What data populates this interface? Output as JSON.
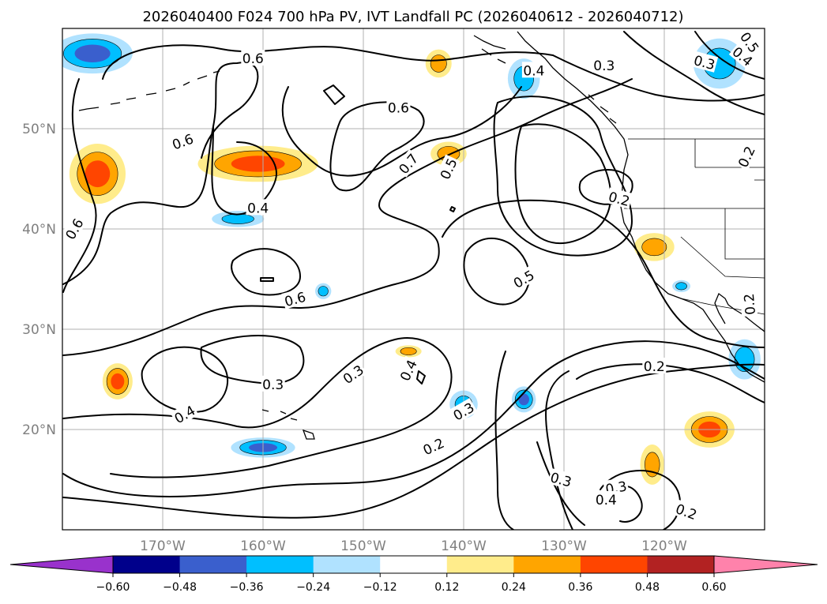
{
  "chart_data": {
    "type": "contour_map",
    "title": "2026040400 F024 700 hPa PV, IVT Landfall PC (2026040612 - 2026040712)",
    "projection": "PlateCarree",
    "xlim": [
      -180,
      -110
    ],
    "ylim": [
      10,
      60
    ],
    "lon_ticks": [
      -170,
      -160,
      -150,
      -140,
      -130,
      -120
    ],
    "lon_tick_labels": [
      "170°W",
      "160°W",
      "150°W",
      "140°W",
      "130°W",
      "120°W"
    ],
    "lat_ticks": [
      20,
      30,
      40,
      50
    ],
    "lat_tick_labels": [
      "20°N",
      "30°N",
      "40°N",
      "50°N"
    ],
    "grid": true,
    "colorbar": {
      "orientation": "horizontal",
      "extend": "both",
      "levels": [
        -0.6,
        -0.48,
        -0.36,
        -0.24,
        -0.12,
        0.12,
        0.24,
        0.36,
        0.48,
        0.6
      ],
      "tick_labels": [
        "−0.60",
        "−0.48",
        "−0.36",
        "−0.24",
        "−0.12",
        "0.12",
        "0.24",
        "0.36",
        "0.48",
        "0.60"
      ],
      "colors": [
        "#9932cc",
        "#00008b",
        "#3a5fcd",
        "#00bfff",
        "#b0e2ff",
        "#ffffff",
        "#ffec8b",
        "#ffa500",
        "#ff4500",
        "#b22222",
        "#ff82ab"
      ]
    },
    "contour_levels": [
      0.2,
      0.3,
      0.4,
      0.5,
      0.6,
      0.7
    ],
    "contour_labels": [
      {
        "text": "0.6",
        "lon": -161.0,
        "lat": 57.0,
        "rot": 0
      },
      {
        "text": "0.4",
        "lon": -133.0,
        "lat": 55.8,
        "rot": 0
      },
      {
        "text": "0.3",
        "lon": -126.0,
        "lat": 56.3,
        "rot": 0
      },
      {
        "text": "0.3",
        "lon": -116.0,
        "lat": 56.6,
        "rot": 15
      },
      {
        "text": "0.4",
        "lon": -112.2,
        "lat": 57.2,
        "rot": 40
      },
      {
        "text": "0.5",
        "lon": -111.5,
        "lat": 58.6,
        "rot": 55
      },
      {
        "text": "0.6",
        "lon": -146.5,
        "lat": 52.1,
        "rot": 0
      },
      {
        "text": "0.6",
        "lon": -168.0,
        "lat": 48.7,
        "rot": -20
      },
      {
        "text": "0.2",
        "lon": -111.8,
        "lat": 47.2,
        "rot": -65
      },
      {
        "text": "0.7",
        "lon": -145.5,
        "lat": 46.5,
        "rot": -50
      },
      {
        "text": "0.5",
        "lon": -141.5,
        "lat": 46.0,
        "rot": -65
      },
      {
        "text": "0.2",
        "lon": -124.5,
        "lat": 43.0,
        "rot": 15
      },
      {
        "text": "0.4",
        "lon": -160.5,
        "lat": 42.1,
        "rot": 0
      },
      {
        "text": "0.6",
        "lon": -178.8,
        "lat": 40.0,
        "rot": -60
      },
      {
        "text": "0.5",
        "lon": -134.0,
        "lat": 35.0,
        "rot": -30
      },
      {
        "text": "0.6",
        "lon": -156.8,
        "lat": 33.0,
        "rot": -15
      },
      {
        "text": "0.2",
        "lon": -111.5,
        "lat": 32.5,
        "rot": -95
      },
      {
        "text": "0.2",
        "lon": -121.0,
        "lat": 26.3,
        "rot": 0
      },
      {
        "text": "0.3",
        "lon": -159.0,
        "lat": 24.5,
        "rot": 0
      },
      {
        "text": "0.3",
        "lon": -151.0,
        "lat": 25.5,
        "rot": -35
      },
      {
        "text": "0.4",
        "lon": -145.5,
        "lat": 25.9,
        "rot": -65
      },
      {
        "text": "0.3",
        "lon": -140.0,
        "lat": 21.8,
        "rot": -30
      },
      {
        "text": "0.4",
        "lon": -167.8,
        "lat": 21.5,
        "rot": -30
      },
      {
        "text": "0.2",
        "lon": -143.0,
        "lat": 18.3,
        "rot": -25
      },
      {
        "text": "0.3",
        "lon": -130.3,
        "lat": 15.0,
        "rot": 15
      },
      {
        "text": "0.3",
        "lon": -124.8,
        "lat": 14.2,
        "rot": -10
      },
      {
        "text": "0.4",
        "lon": -125.8,
        "lat": 13.0,
        "rot": 0
      },
      {
        "text": "0.2",
        "lon": -117.8,
        "lat": 11.8,
        "rot": 20
      }
    ],
    "pc_anomaly_patches": [
      {
        "lon": -176.5,
        "lat": 45.5,
        "rlon": 2.8,
        "rlat": 3.0,
        "value": 0.42
      },
      {
        "lon": -160.5,
        "lat": 46.5,
        "rlon": 6.0,
        "rlat": 1.8,
        "value": 0.42
      },
      {
        "lon": -141.5,
        "lat": 47.5,
        "rlon": 1.8,
        "rlat": 1.2,
        "value": 0.3
      },
      {
        "lon": -142.5,
        "lat": 56.5,
        "rlon": 1.3,
        "rlat": 1.4,
        "value": 0.34
      },
      {
        "lon": -121.0,
        "lat": 38.2,
        "rlon": 2.0,
        "rlat": 1.4,
        "value": 0.32
      },
      {
        "lon": -115.5,
        "lat": 20.0,
        "rlon": 2.5,
        "rlat": 1.8,
        "value": 0.42
      },
      {
        "lon": -121.2,
        "lat": 16.5,
        "rlon": 1.2,
        "rlat": 2.0,
        "value": 0.28
      },
      {
        "lon": -174.5,
        "lat": 24.8,
        "rlon": 1.5,
        "rlat": 1.8,
        "value": 0.38
      },
      {
        "lon": -145.5,
        "lat": 27.8,
        "rlon": 1.3,
        "rlat": 0.6,
        "value": 0.26
      },
      {
        "lon": -177.0,
        "lat": 57.5,
        "rlon": 4.0,
        "rlat": 2.0,
        "value": -0.42
      },
      {
        "lon": -162.5,
        "lat": 41.0,
        "rlon": 2.6,
        "rlat": 0.8,
        "value": -0.34
      },
      {
        "lon": -160.0,
        "lat": 18.2,
        "rlon": 3.2,
        "rlat": 1.0,
        "value": -0.44
      },
      {
        "lon": -134.0,
        "lat": 55.0,
        "rlon": 1.6,
        "rlat": 2.0,
        "value": -0.32
      },
      {
        "lon": -114.5,
        "lat": 56.5,
        "rlon": 2.6,
        "rlat": 2.5,
        "value": -0.3
      },
      {
        "lon": -112.0,
        "lat": 27.0,
        "rlon": 1.6,
        "rlat": 2.0,
        "value": -0.32
      },
      {
        "lon": -140.0,
        "lat": 22.5,
        "rlon": 1.4,
        "rlat": 1.4,
        "value": -0.3
      },
      {
        "lon": -134.0,
        "lat": 23.0,
        "rlon": 1.2,
        "rlat": 1.3,
        "value": -0.4
      },
      {
        "lon": -118.3,
        "lat": 34.3,
        "rlon": 0.9,
        "rlat": 0.6,
        "value": -0.28
      },
      {
        "lon": -154.0,
        "lat": 33.8,
        "rlon": 0.8,
        "rlat": 0.8,
        "value": -0.26
      }
    ]
  }
}
